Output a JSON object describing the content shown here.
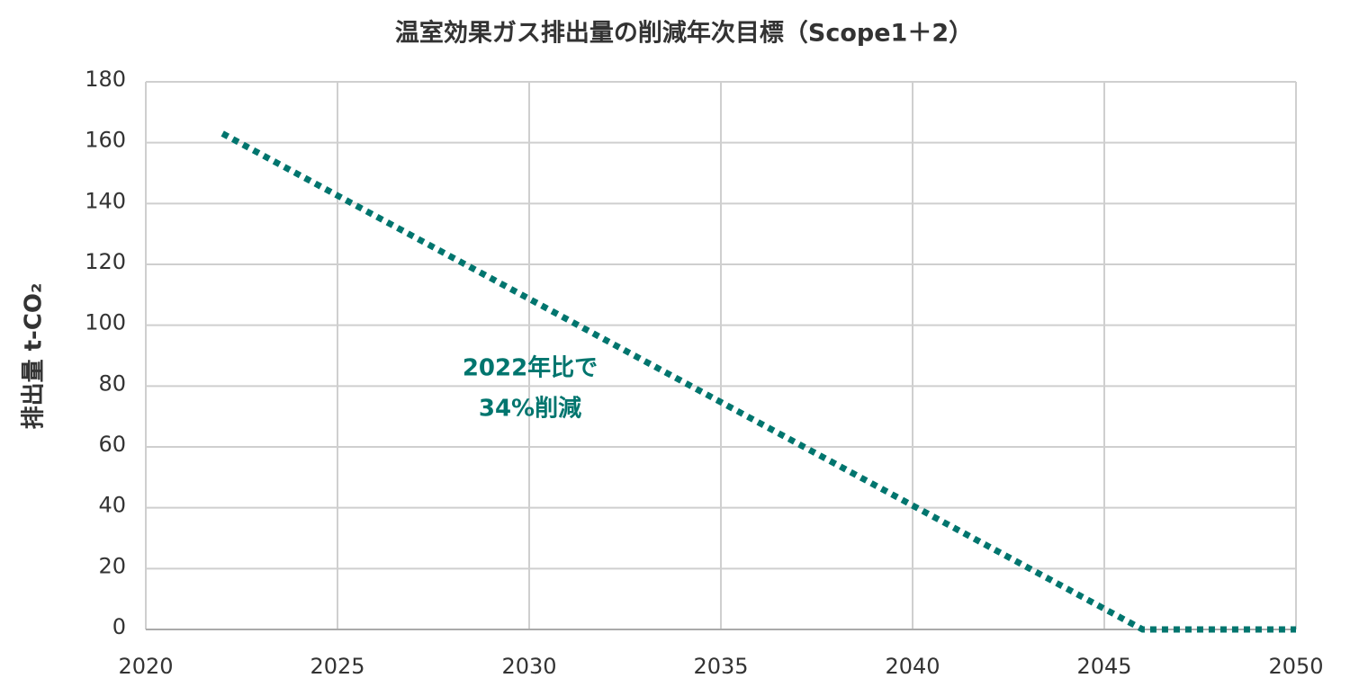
{
  "chart_data": {
    "type": "line",
    "title": "温室効果ガス排出量の削減年次目標（Scope1＋2）",
    "ylabel": "排出量 t-CO₂",
    "x": [
      2022,
      2046,
      2050
    ],
    "values": [
      163,
      0,
      0
    ],
    "color": "#00756e",
    "xlim": [
      2020,
      2050
    ],
    "xticks": [
      2020,
      2025,
      2030,
      2035,
      2040,
      2045,
      2050
    ],
    "ylim": [
      0,
      180
    ],
    "yticks": [
      0,
      20,
      40,
      60,
      80,
      100,
      120,
      140,
      160,
      180
    ],
    "grid": true,
    "dashed": true,
    "annotation": [
      "2022年比で",
      "34%削減"
    ]
  }
}
